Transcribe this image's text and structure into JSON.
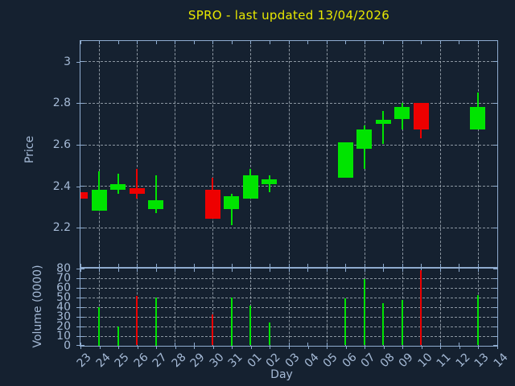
{
  "title": {
    "text": "SPRO - last updated 13/04/2026"
  },
  "axes": {
    "price_label": "Price",
    "volume_label": "Volume (0000)",
    "day_label": "Day",
    "price_ticks": [
      "3",
      "2.8",
      "2.6",
      "2.4",
      "2.2"
    ],
    "price_tick_values": [
      3.0,
      2.8,
      2.6,
      2.4,
      2.2
    ],
    "volume_ticks": [
      "80",
      "70",
      "60",
      "50",
      "40",
      "30",
      "20",
      "10",
      "0"
    ],
    "volume_tick_values": [
      80,
      70,
      60,
      50,
      40,
      30,
      20,
      10,
      0
    ],
    "day_ticks": [
      "23",
      "24",
      "25",
      "26",
      "27",
      "28",
      "29",
      "30",
      "31",
      "01",
      "02",
      "03",
      "04",
      "05",
      "06",
      "07",
      "08",
      "09",
      "10",
      "11",
      "12",
      "13",
      "14"
    ]
  },
  "colors": {
    "background": "#152130",
    "axis": "#8faccf",
    "grid": "#b2bcc6",
    "tick_label": "#a5bad6",
    "title": "#e9e900",
    "up": "#00e400",
    "down": "#ee0000"
  },
  "chart_data": [
    {
      "type": "candlestick",
      "title": "SPRO - last updated 13/04/2026",
      "xlabel": "Day",
      "ylabel": "Price",
      "ylim": [
        2.01,
        3.1
      ],
      "ytick_step": 0.2,
      "grid": true,
      "gridline_days_every_other_from": "24",
      "x_labels": [
        "23",
        "24",
        "25",
        "26",
        "27",
        "28",
        "29",
        "30",
        "31",
        "01",
        "02",
        "03",
        "04",
        "05",
        "06",
        "07",
        "08",
        "09",
        "10",
        "11",
        "12",
        "13",
        "14"
      ],
      "candles": [
        {
          "day": "23",
          "open": 2.37,
          "high": 2.37,
          "low": 2.34,
          "close": 2.34,
          "volume": null
        },
        {
          "day": "24",
          "open": 2.28,
          "high": 2.47,
          "low": 2.28,
          "close": 2.38,
          "volume": 40
        },
        {
          "day": "25",
          "open": 2.38,
          "high": 2.46,
          "low": 2.36,
          "close": 2.41,
          "volume": 20
        },
        {
          "day": "26",
          "open": 2.39,
          "high": 2.48,
          "low": 2.34,
          "close": 2.36,
          "volume": 51
        },
        {
          "day": "27",
          "open": 2.29,
          "high": 2.45,
          "low": 2.27,
          "close": 2.33,
          "volume": 50
        },
        {
          "day": "30",
          "open": 2.38,
          "high": 2.44,
          "low": 2.24,
          "close": 2.24,
          "volume": 32
        },
        {
          "day": "31",
          "open": 2.29,
          "high": 2.36,
          "low": 2.21,
          "close": 2.35,
          "volume": 50
        },
        {
          "day": "01",
          "open": 2.34,
          "high": 2.48,
          "low": 2.34,
          "close": 2.45,
          "volume": 41
        },
        {
          "day": "02",
          "open": 2.41,
          "high": 2.45,
          "low": 2.37,
          "close": 2.43,
          "volume": 24
        },
        {
          "day": "06",
          "open": 2.44,
          "high": 2.61,
          "low": 2.44,
          "close": 2.61,
          "volume": 49
        },
        {
          "day": "07",
          "open": 2.58,
          "high": 2.69,
          "low": 2.48,
          "close": 2.67,
          "volume": 69
        },
        {
          "day": "08",
          "open": 2.7,
          "high": 2.76,
          "low": 2.6,
          "close": 2.72,
          "volume": 44
        },
        {
          "day": "09",
          "open": 2.72,
          "high": 2.8,
          "low": 2.67,
          "close": 2.78,
          "volume": 47
        },
        {
          "day": "10",
          "open": 2.8,
          "high": 2.8,
          "low": 2.63,
          "close": 2.67,
          "volume": 78
        },
        {
          "day": "13",
          "open": 2.67,
          "high": 2.85,
          "low": 2.67,
          "close": 2.78,
          "volume": 52
        }
      ]
    },
    {
      "type": "bar",
      "title": "",
      "xlabel": "Day",
      "ylabel": "Volume (0000)",
      "ylim": [
        0,
        80
      ],
      "grid": true,
      "categories": [
        "23",
        "24",
        "25",
        "26",
        "27",
        "30",
        "31",
        "01",
        "02",
        "06",
        "07",
        "08",
        "09",
        "10",
        "13"
      ],
      "values": [
        null,
        40,
        20,
        51,
        50,
        32,
        50,
        41,
        24,
        49,
        69,
        44,
        47,
        78,
        52
      ]
    }
  ]
}
